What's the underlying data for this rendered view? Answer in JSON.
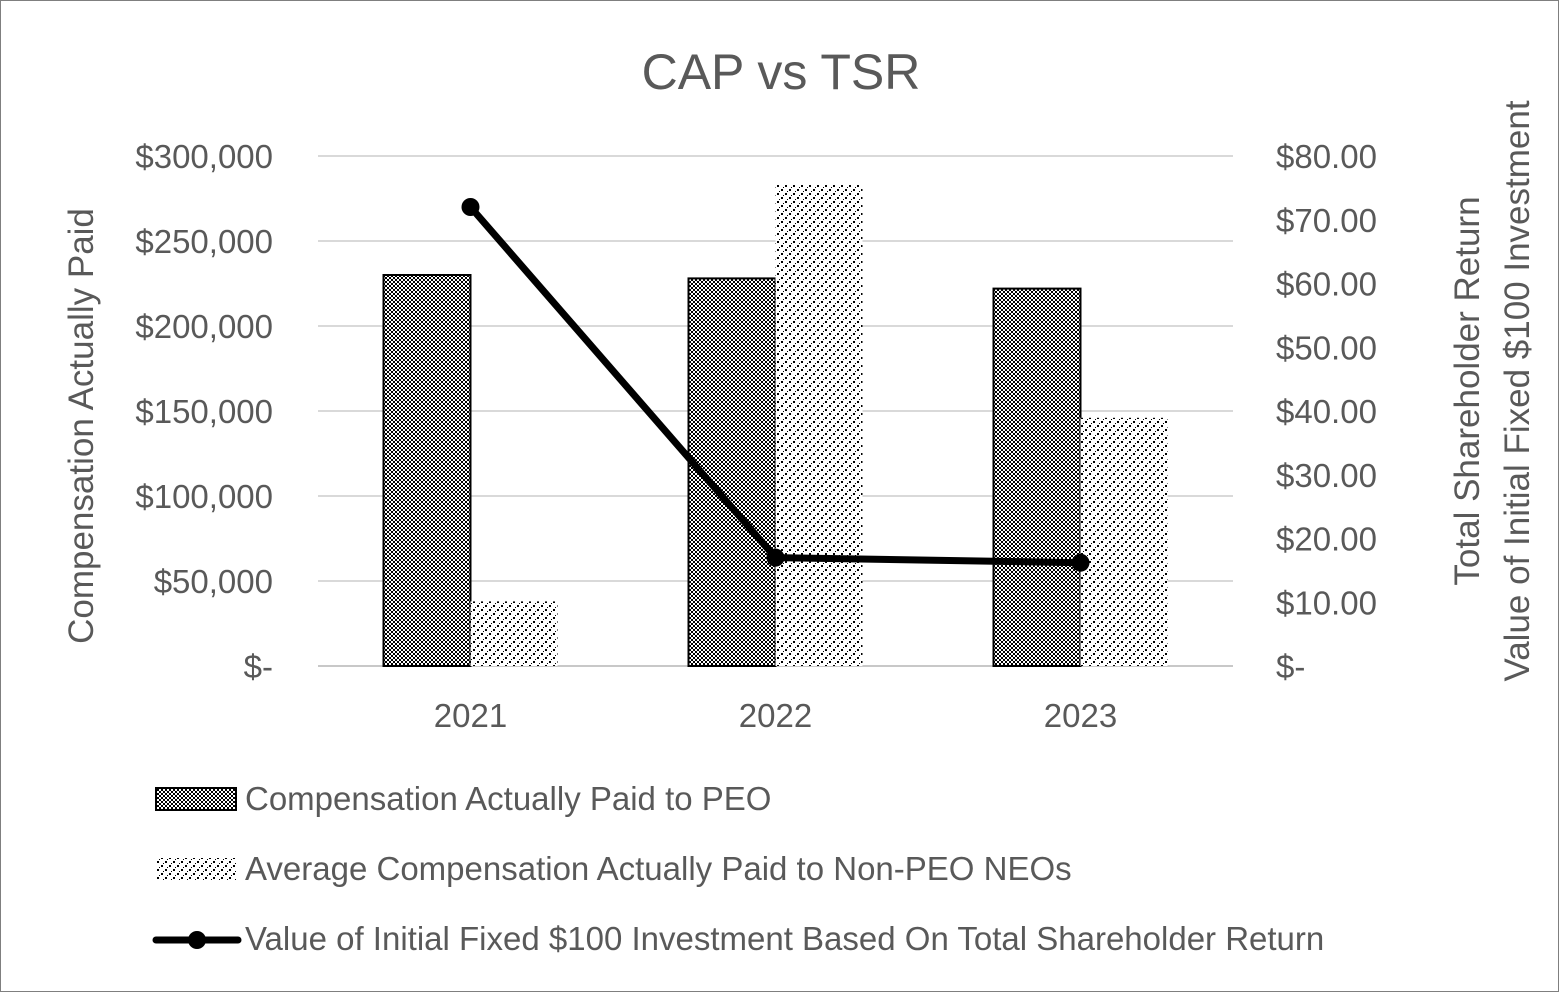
{
  "chart_data": {
    "type": "bar",
    "title": "CAP vs TSR",
    "categories": [
      "2021",
      "2022",
      "2023"
    ],
    "ylabel": "Compensation Actually Paid",
    "y2label_line1": "Total Shareholder Return",
    "y2label_line2": "Value of Initial Fixed $100 Investment",
    "ylim": [
      0,
      300000
    ],
    "y2lim": [
      0,
      80
    ],
    "yticks": [
      "$-",
      "$50,000",
      "$100,000",
      "$150,000",
      "$200,000",
      "$250,000",
      "$300,000"
    ],
    "y2ticks": [
      "$-",
      "$10.00",
      "$20.00",
      "$30.00",
      "$40.00",
      "$50.00",
      "$60.00",
      "$70.00",
      "$80.00"
    ],
    "grid": true,
    "legend_position": "bottom",
    "series": [
      {
        "name": "Compensation Actually Paid to PEO",
        "kind": "bar",
        "axis": "left",
        "pattern": "dense-checker",
        "values": [
          230000,
          228000,
          222000
        ]
      },
      {
        "name": "Average Compensation Actually Paid to Non-PEO NEOs",
        "kind": "bar",
        "axis": "left",
        "pattern": "sparse-checker",
        "values": [
          38000,
          283000,
          146000
        ]
      },
      {
        "name": "Value of Initial Fixed $100 Investment Based On Total Shareholder Return",
        "kind": "line",
        "axis": "right",
        "color": "#000000",
        "values": [
          72.0,
          17.0,
          16.2
        ]
      }
    ]
  }
}
